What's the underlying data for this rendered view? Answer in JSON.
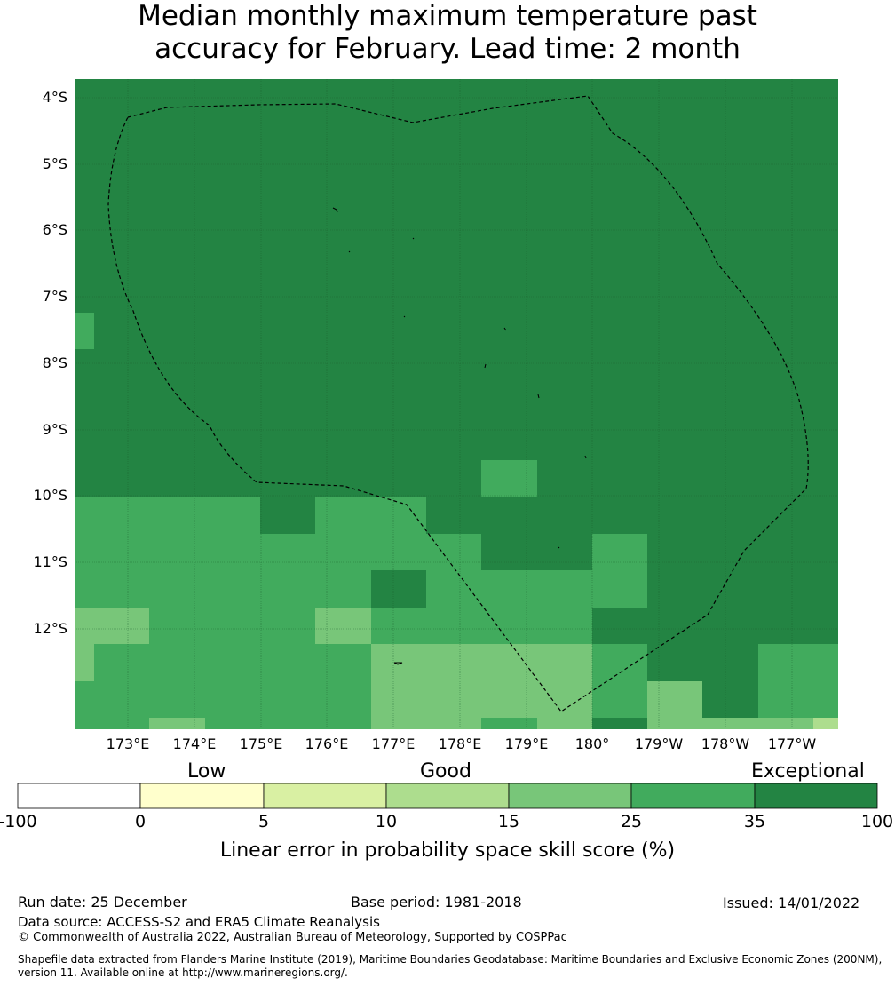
{
  "title": {
    "line1": "Median monthly maximum temperature past",
    "line2": "accuracy for February. Lead time: 2 month"
  },
  "map": {
    "lat_labels": [
      "4°S",
      "5°S",
      "6°S",
      "7°S",
      "8°S",
      "9°S",
      "10°S",
      "11°S",
      "12°S"
    ],
    "lon_labels": [
      "173°E",
      "174°E",
      "175°E",
      "176°E",
      "177°E",
      "178°E",
      "179°E",
      "180°",
      "179°W",
      "178°W",
      "177°W"
    ],
    "boundary_style": "dashed",
    "colors": {
      "c35_100": "#238443",
      "c25_35": "#41ab5d",
      "c15_25": "#78c679",
      "c10_15": "#addd8e",
      "c5_10": "#d9f0a3",
      "c0_5": "#ffffcc",
      "below0": "#ffffff"
    }
  },
  "legend": {
    "categories": [
      "Low",
      "Good",
      "Exceptional"
    ],
    "ticks": [
      "-100",
      "0",
      "5",
      "10",
      "15",
      "25",
      "35",
      "100"
    ],
    "colors": [
      "#ffffff",
      "#ffffcc",
      "#d9f0a3",
      "#addd8e",
      "#78c679",
      "#41ab5d",
      "#238443"
    ],
    "title": "Linear error in probability space skill score (%)"
  },
  "footer": {
    "run_date": "Run date: 25 December",
    "base_period": "Base period: 1981-2018",
    "issued": "Issued: 14/01/2022",
    "data_source": "Data source: ACCESS-S2 and ERA5 Climate Reanalysis",
    "copyright": "© Commonwealth of Australia 2022, Australian Bureau of Meteorology, Supported by COSPPac",
    "shapefile": "Shapefile data extracted from Flanders Marine Institute (2019), Maritime Boundaries Geodatabase: Maritime Boundaries and Exclusive Economic Zones (200NM), version 11. Available online at http://www.marineregions.org/."
  }
}
